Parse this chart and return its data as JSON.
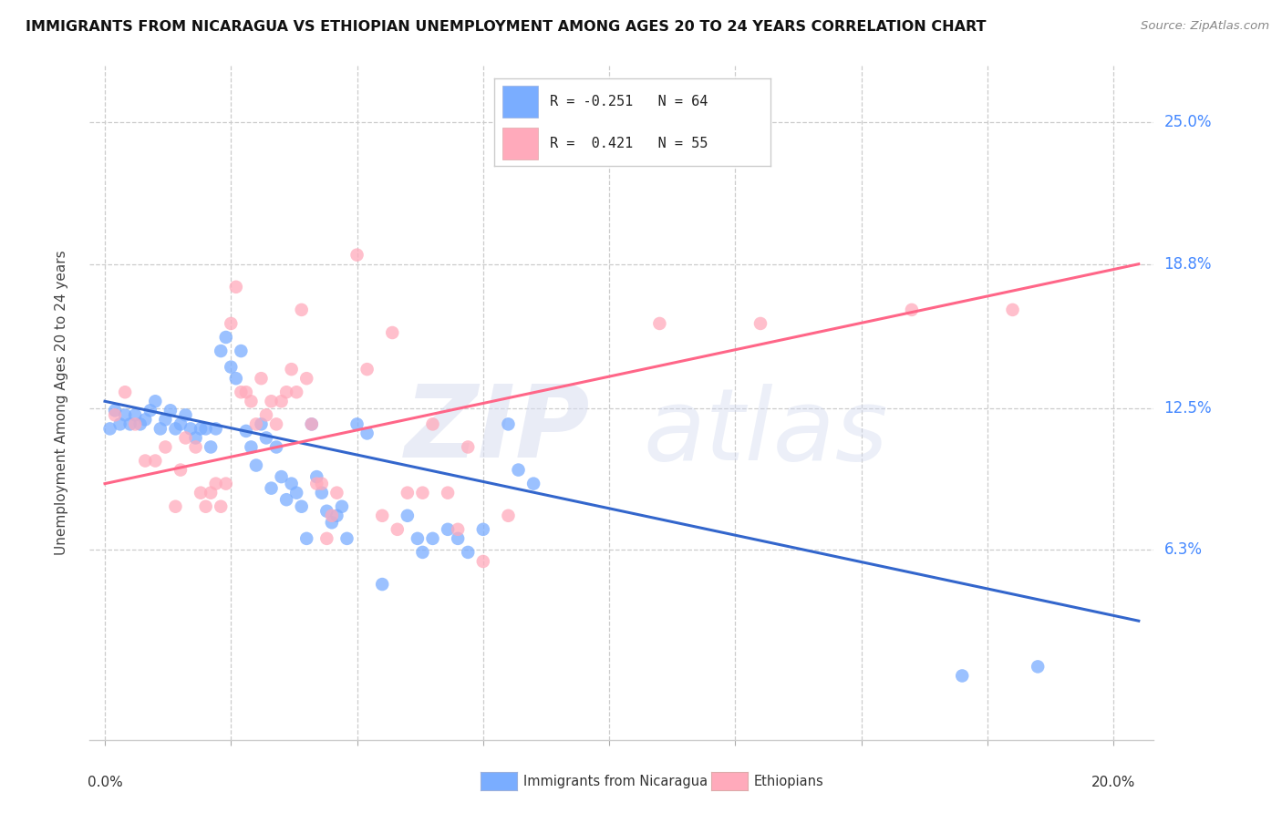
{
  "title": "IMMIGRANTS FROM NICARAGUA VS ETHIOPIAN UNEMPLOYMENT AMONG AGES 20 TO 24 YEARS CORRELATION CHART",
  "source": "Source: ZipAtlas.com",
  "ylabel": "Unemployment Among Ages 20 to 24 years",
  "ytick_labels": [
    "25.0%",
    "18.8%",
    "12.5%",
    "6.3%"
  ],
  "ytick_vals": [
    0.25,
    0.188,
    0.125,
    0.063
  ],
  "ymin": -0.02,
  "ymax": 0.275,
  "xmin": -0.003,
  "xmax": 0.208,
  "legend_label1": "Immigrants from Nicaragua",
  "legend_label2": "Ethiopians",
  "blue_color": "#7aadff",
  "pink_color": "#ffaabb",
  "blue_line_color": "#3366cc",
  "pink_line_color": "#ff6688",
  "blue_line_x": [
    0.0,
    0.205
  ],
  "blue_line_y": [
    0.128,
    0.032
  ],
  "pink_line_x": [
    0.0,
    0.205
  ],
  "pink_line_y": [
    0.092,
    0.188
  ],
  "blue_scatter": [
    [
      0.001,
      0.116
    ],
    [
      0.002,
      0.124
    ],
    [
      0.003,
      0.118
    ],
    [
      0.004,
      0.122
    ],
    [
      0.005,
      0.118
    ],
    [
      0.006,
      0.122
    ],
    [
      0.007,
      0.118
    ],
    [
      0.008,
      0.12
    ],
    [
      0.009,
      0.124
    ],
    [
      0.01,
      0.128
    ],
    [
      0.011,
      0.116
    ],
    [
      0.012,
      0.12
    ],
    [
      0.013,
      0.124
    ],
    [
      0.014,
      0.116
    ],
    [
      0.015,
      0.118
    ],
    [
      0.016,
      0.122
    ],
    [
      0.017,
      0.116
    ],
    [
      0.018,
      0.112
    ],
    [
      0.019,
      0.116
    ],
    [
      0.02,
      0.116
    ],
    [
      0.021,
      0.108
    ],
    [
      0.022,
      0.116
    ],
    [
      0.023,
      0.15
    ],
    [
      0.024,
      0.156
    ],
    [
      0.025,
      0.143
    ],
    [
      0.026,
      0.138
    ],
    [
      0.027,
      0.15
    ],
    [
      0.028,
      0.115
    ],
    [
      0.029,
      0.108
    ],
    [
      0.03,
      0.1
    ],
    [
      0.031,
      0.118
    ],
    [
      0.032,
      0.112
    ],
    [
      0.033,
      0.09
    ],
    [
      0.034,
      0.108
    ],
    [
      0.035,
      0.095
    ],
    [
      0.036,
      0.085
    ],
    [
      0.037,
      0.092
    ],
    [
      0.038,
      0.088
    ],
    [
      0.039,
      0.082
    ],
    [
      0.04,
      0.068
    ],
    [
      0.041,
      0.118
    ],
    [
      0.042,
      0.095
    ],
    [
      0.043,
      0.088
    ],
    [
      0.044,
      0.08
    ],
    [
      0.045,
      0.075
    ],
    [
      0.046,
      0.078
    ],
    [
      0.047,
      0.082
    ],
    [
      0.048,
      0.068
    ],
    [
      0.05,
      0.118
    ],
    [
      0.052,
      0.114
    ],
    [
      0.055,
      0.048
    ],
    [
      0.06,
      0.078
    ],
    [
      0.062,
      0.068
    ],
    [
      0.063,
      0.062
    ],
    [
      0.065,
      0.068
    ],
    [
      0.068,
      0.072
    ],
    [
      0.07,
      0.068
    ],
    [
      0.072,
      0.062
    ],
    [
      0.075,
      0.072
    ],
    [
      0.08,
      0.118
    ],
    [
      0.082,
      0.098
    ],
    [
      0.085,
      0.092
    ],
    [
      0.17,
      0.008
    ],
    [
      0.185,
      0.012
    ]
  ],
  "pink_scatter": [
    [
      0.002,
      0.122
    ],
    [
      0.004,
      0.132
    ],
    [
      0.006,
      0.118
    ],
    [
      0.008,
      0.102
    ],
    [
      0.01,
      0.102
    ],
    [
      0.012,
      0.108
    ],
    [
      0.014,
      0.082
    ],
    [
      0.015,
      0.098
    ],
    [
      0.016,
      0.112
    ],
    [
      0.018,
      0.108
    ],
    [
      0.019,
      0.088
    ],
    [
      0.02,
      0.082
    ],
    [
      0.021,
      0.088
    ],
    [
      0.022,
      0.092
    ],
    [
      0.023,
      0.082
    ],
    [
      0.024,
      0.092
    ],
    [
      0.025,
      0.162
    ],
    [
      0.026,
      0.178
    ],
    [
      0.027,
      0.132
    ],
    [
      0.028,
      0.132
    ],
    [
      0.029,
      0.128
    ],
    [
      0.03,
      0.118
    ],
    [
      0.031,
      0.138
    ],
    [
      0.032,
      0.122
    ],
    [
      0.033,
      0.128
    ],
    [
      0.034,
      0.118
    ],
    [
      0.035,
      0.128
    ],
    [
      0.036,
      0.132
    ],
    [
      0.037,
      0.142
    ],
    [
      0.038,
      0.132
    ],
    [
      0.039,
      0.168
    ],
    [
      0.04,
      0.138
    ],
    [
      0.041,
      0.118
    ],
    [
      0.042,
      0.092
    ],
    [
      0.043,
      0.092
    ],
    [
      0.044,
      0.068
    ],
    [
      0.045,
      0.078
    ],
    [
      0.046,
      0.088
    ],
    [
      0.05,
      0.192
    ],
    [
      0.052,
      0.142
    ],
    [
      0.055,
      0.078
    ],
    [
      0.057,
      0.158
    ],
    [
      0.058,
      0.072
    ],
    [
      0.06,
      0.088
    ],
    [
      0.063,
      0.088
    ],
    [
      0.065,
      0.118
    ],
    [
      0.068,
      0.088
    ],
    [
      0.07,
      0.072
    ],
    [
      0.072,
      0.108
    ],
    [
      0.075,
      0.058
    ],
    [
      0.08,
      0.078
    ],
    [
      0.11,
      0.162
    ],
    [
      0.13,
      0.162
    ],
    [
      0.16,
      0.168
    ],
    [
      0.18,
      0.168
    ]
  ]
}
